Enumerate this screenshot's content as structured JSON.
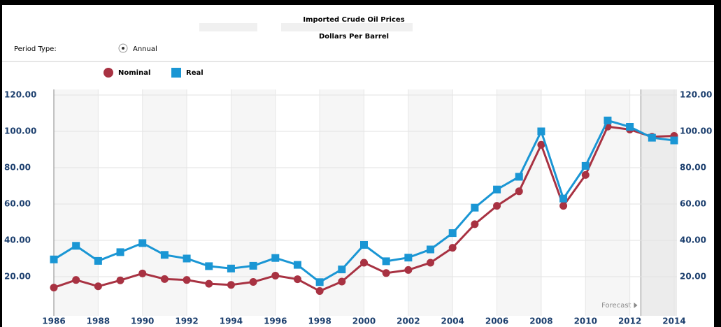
{
  "controls": {
    "period_type_label": "Period Type:",
    "period_option": "Annual"
  },
  "chart_data": {
    "type": "line",
    "title": "Imported Crude Oil Prices",
    "subtitle": "Dollars Per Barrel",
    "x": [
      1986,
      1987,
      1988,
      1989,
      1990,
      1991,
      1992,
      1993,
      1994,
      1995,
      1996,
      1997,
      1998,
      1999,
      2000,
      2001,
      2002,
      2003,
      2004,
      2005,
      2006,
      2007,
      2008,
      2009,
      2010,
      2011,
      2012,
      2013,
      2014
    ],
    "series": [
      {
        "name": "Nominal",
        "color": "#a83242",
        "marker": "circle",
        "values": [
          14,
          18.2,
          14.7,
          18,
          21.8,
          18.7,
          18.2,
          16.1,
          15.5,
          17.1,
          20.6,
          18.6,
          12.1,
          17.3,
          27.7,
          22,
          23.7,
          27.7,
          35.9,
          48.9,
          59,
          67,
          92.6,
          59,
          76,
          102.6,
          101,
          97,
          97.5
        ]
      },
      {
        "name": "Real",
        "color": "#1a96d4",
        "marker": "square",
        "values": [
          29.5,
          37,
          28.7,
          33.5,
          38.5,
          32,
          30,
          25.8,
          24.5,
          26,
          30.3,
          26.5,
          17,
          24,
          37.5,
          28.5,
          30.5,
          35,
          44,
          58,
          68,
          75,
          100,
          63,
          81,
          106,
          102.5,
          96.5,
          95
        ]
      }
    ],
    "xlim": [
      1986,
      2014
    ],
    "xticks": [
      1986,
      1988,
      1990,
      1992,
      1994,
      1996,
      1998,
      2000,
      2002,
      2004,
      2006,
      2008,
      2010,
      2012,
      2014
    ],
    "ylim": [
      0,
      120
    ],
    "yticks": [
      {
        "value": 20,
        "label": "20.00"
      },
      {
        "value": 40,
        "label": "40.00"
      },
      {
        "value": 60,
        "label": "60.00"
      },
      {
        "value": 80,
        "label": "80.00"
      },
      {
        "value": 100,
        "label": "100.00"
      },
      {
        "value": 120,
        "label": "120.00"
      }
    ],
    "grid": true,
    "forecast_start": 2012.5,
    "forecast_label": "Forecast"
  }
}
